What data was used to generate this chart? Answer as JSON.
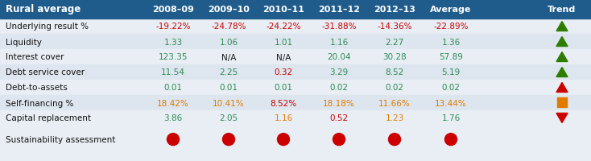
{
  "title": "Rural average",
  "header_bg": "#1f5c8b",
  "header_text_color": "#ffffff",
  "body_bg": "#e8eef4",
  "row_alt_bg": "#dde5ee",
  "col_headers": [
    "2008–09",
    "2009–10",
    "2010–11",
    "2011–12",
    "2012–13",
    "Average",
    "Trend"
  ],
  "rows": [
    {
      "label": "Underlying result %",
      "values": [
        "-19.22%",
        "-24.78%",
        "-24.22%",
        "-31.88%",
        "-14.36%",
        "-22.89%"
      ],
      "value_colors": [
        "red",
        "red",
        "red",
        "red",
        "red",
        "red"
      ],
      "trend": "up_green"
    },
    {
      "label": "Liquidity",
      "values": [
        "1.33",
        "1.06",
        "1.01",
        "1.16",
        "2.27",
        "1.36"
      ],
      "value_colors": [
        "teal",
        "teal",
        "teal",
        "teal",
        "teal",
        "teal"
      ],
      "trend": "up_green"
    },
    {
      "label": "Interest cover",
      "values": [
        "123.35",
        "N/A",
        "N/A",
        "20.04",
        "30.28",
        "57.89"
      ],
      "value_colors": [
        "teal",
        "dark",
        "dark",
        "teal",
        "teal",
        "teal"
      ],
      "trend": "up_green"
    },
    {
      "label": "Debt service cover",
      "values": [
        "11.54",
        "2.25",
        "0.32",
        "3.29",
        "8.52",
        "5.19"
      ],
      "value_colors": [
        "teal",
        "teal",
        "red",
        "teal",
        "teal",
        "teal"
      ],
      "trend": "up_green"
    },
    {
      "label": "Debt-to-assets",
      "values": [
        "0.01",
        "0.01",
        "0.01",
        "0.02",
        "0.02",
        "0.02"
      ],
      "value_colors": [
        "teal",
        "teal",
        "teal",
        "teal",
        "teal",
        "teal"
      ],
      "trend": "up_red"
    },
    {
      "label": "Self-financing %",
      "values": [
        "18.42%",
        "10.41%",
        "8.52%",
        "18.18%",
        "11.66%",
        "13.44%"
      ],
      "value_colors": [
        "orange",
        "orange",
        "red",
        "orange",
        "orange",
        "orange"
      ],
      "trend": "square_orange"
    },
    {
      "label": "Capital replacement",
      "values": [
        "3.86",
        "2.05",
        "1.16",
        "0.52",
        "1.23",
        "1.76"
      ],
      "value_colors": [
        "teal",
        "teal",
        "orange",
        "red",
        "orange",
        "teal"
      ],
      "trend": "down_red"
    }
  ],
  "sustainability_label": "Sustainability assessment",
  "teal_color": "#2e8b57",
  "red_color": "#cc0000",
  "orange_color": "#e07b00",
  "green_color": "#2e7d00",
  "dark_color": "#1a1a1a"
}
